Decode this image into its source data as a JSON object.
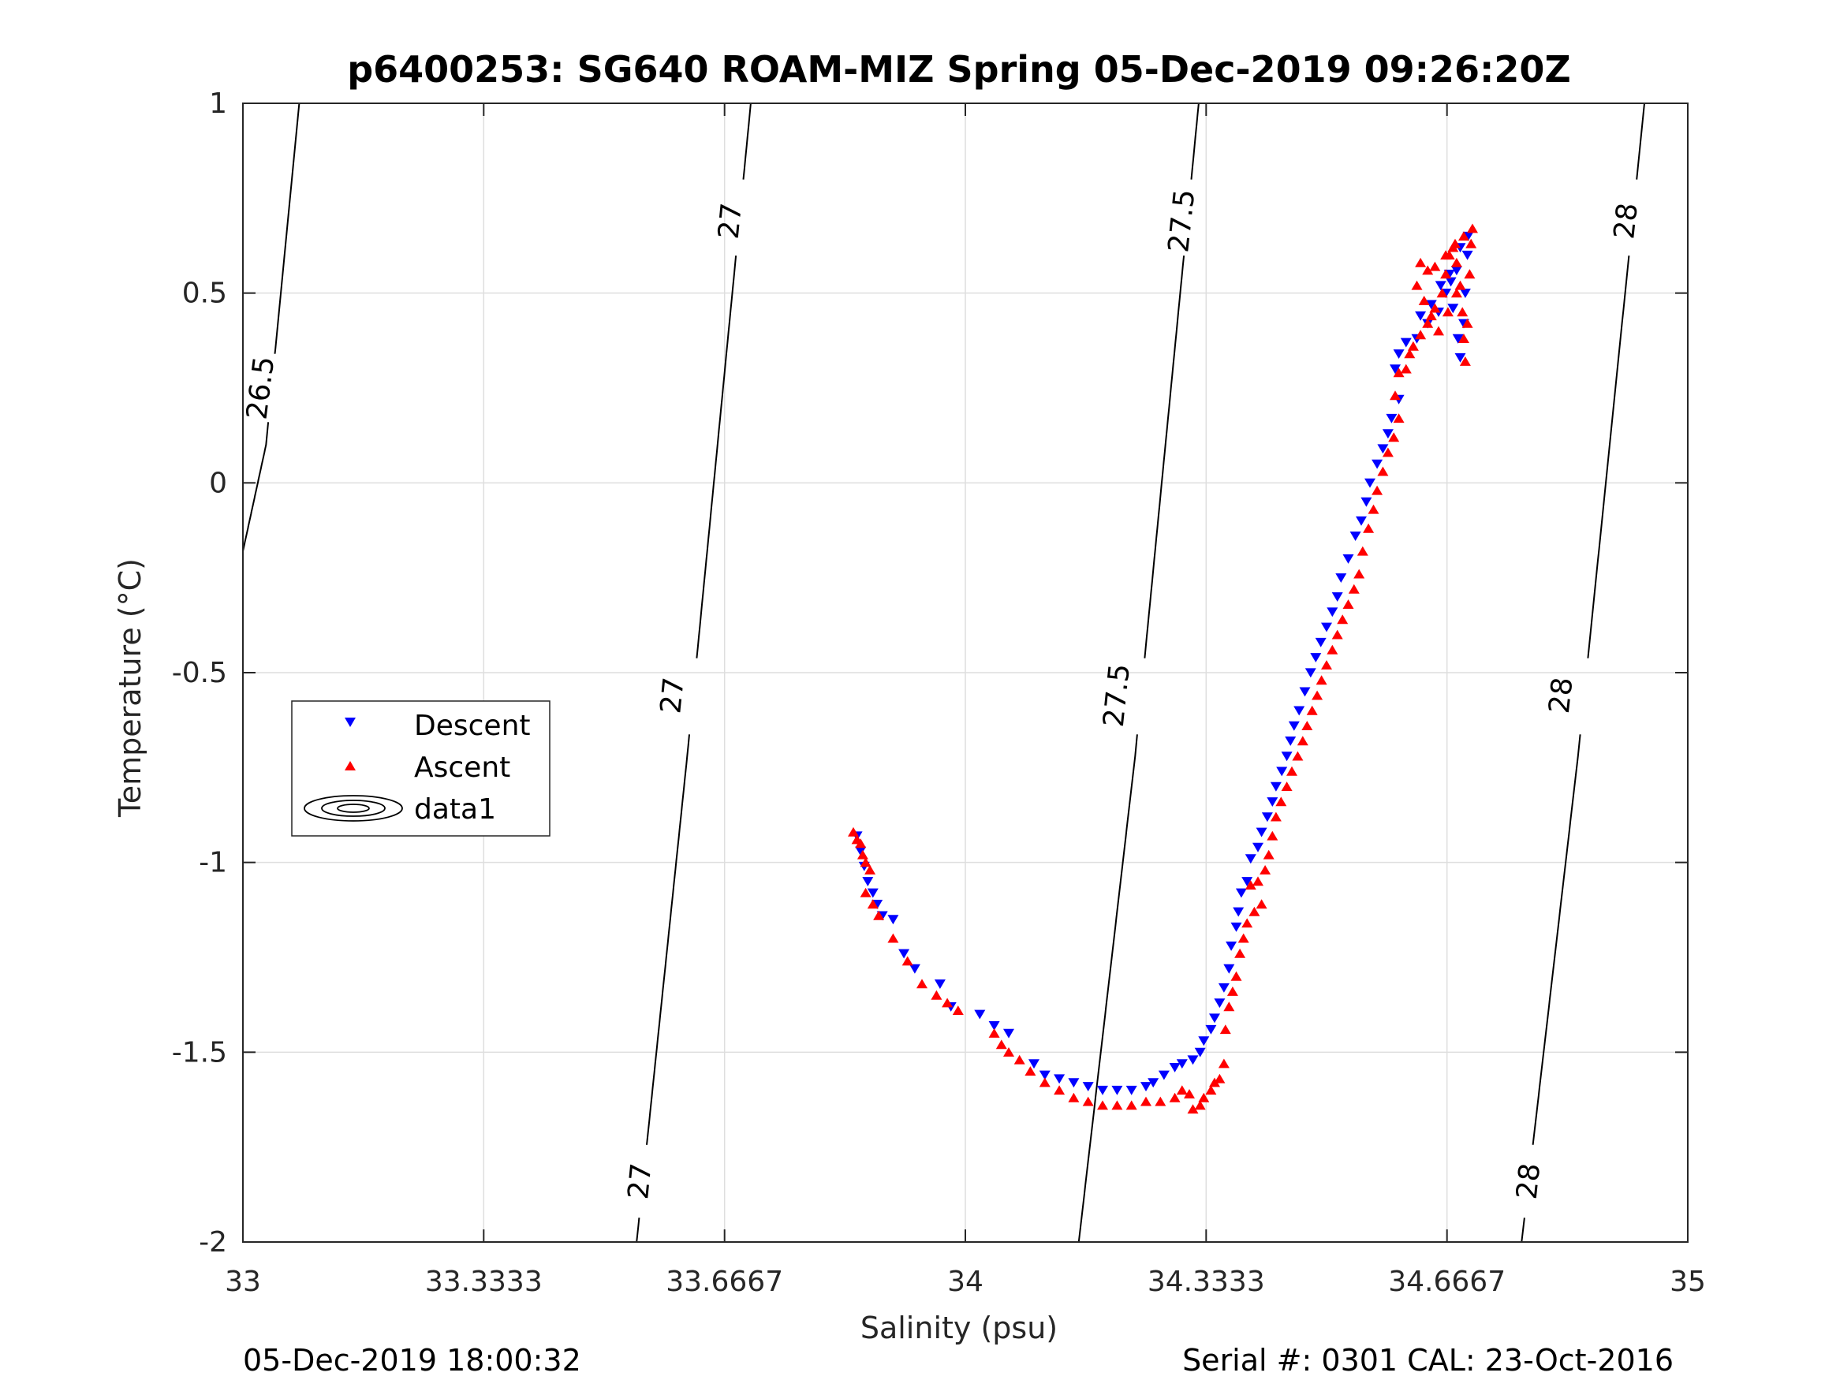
{
  "chart_data": {
    "type": "scatter",
    "title": "p6400253: SG640 ROAM-MIZ Spring 05-Dec-2019 09:26:20Z",
    "xlabel": "Salinity (psu)",
    "ylabel": "Temperature (°C)",
    "xlim": [
      33,
      35
    ],
    "ylim": [
      -2,
      1
    ],
    "x_ticks": [
      "33",
      "33.3333",
      "33.6667",
      "34",
      "34.3333",
      "34.6667",
      "35"
    ],
    "x_tick_values": [
      33,
      33.3333,
      33.6667,
      34,
      34.3333,
      34.6667,
      35
    ],
    "y_ticks": [
      "1",
      "0.5",
      "0",
      "-0.5",
      "-1",
      "-1.5",
      "-2"
    ],
    "y_tick_values": [
      1,
      0.5,
      0,
      -0.5,
      -1,
      -1.5,
      -2
    ],
    "grid": true,
    "legend_position": "left",
    "footer_left": "05-Dec-2019 18:00:32",
    "footer_right": "Serial #: 0301  CAL: 23-Oct-2016",
    "contours": [
      {
        "level": "26.5",
        "x": [
          33.0,
          33.032,
          33.078
        ],
        "y": [
          -0.18,
          0.1,
          1.0
        ],
        "labels": [
          {
            "text": "26.5",
            "x": 33.025,
            "y": 0.25
          }
        ]
      },
      {
        "level": "27",
        "x": [
          33.545,
          33.615,
          33.703
        ],
        "y": [
          -2.0,
          -0.72,
          1.0
        ],
        "labels": [
          {
            "text": "27",
            "x": 33.55,
            "y": -1.84
          },
          {
            "text": "27",
            "x": 33.595,
            "y": -0.56
          },
          {
            "text": "27",
            "x": 33.675,
            "y": 0.69
          }
        ]
      },
      {
        "level": "27.5",
        "x": [
          34.157,
          34.235,
          34.323
        ],
        "y": [
          -2.0,
          -0.72,
          1.0
        ],
        "labels": [
          {
            "text": "27.5",
            "x": 34.21,
            "y": -0.56
          },
          {
            "text": "27.5",
            "x": 34.3,
            "y": 0.69
          }
        ]
      },
      {
        "level": "28",
        "x": [
          34.77,
          34.848,
          34.94
        ],
        "y": [
          -2.0,
          -0.72,
          1.0
        ],
        "labels": [
          {
            "text": "28",
            "x": 34.78,
            "y": -1.84
          },
          {
            "text": "28",
            "x": 34.825,
            "y": -0.56
          },
          {
            "text": "28",
            "x": 34.915,
            "y": 0.69
          }
        ]
      }
    ],
    "series": [
      {
        "name": "Descent",
        "color": "#0000ff",
        "marker": "triangle-down",
        "points": [
          [
            33.85,
            -0.93
          ],
          [
            33.855,
            -0.97
          ],
          [
            33.86,
            -1.01
          ],
          [
            33.865,
            -1.05
          ],
          [
            33.872,
            -1.08
          ],
          [
            33.878,
            -1.11
          ],
          [
            33.885,
            -1.14
          ],
          [
            33.9,
            -1.15
          ],
          [
            33.915,
            -1.24
          ],
          [
            33.93,
            -1.28
          ],
          [
            33.965,
            -1.32
          ],
          [
            33.98,
            -1.38
          ],
          [
            34.02,
            -1.4
          ],
          [
            34.04,
            -1.43
          ],
          [
            34.06,
            -1.45
          ],
          [
            34.095,
            -1.53
          ],
          [
            34.11,
            -1.56
          ],
          [
            34.13,
            -1.57
          ],
          [
            34.15,
            -1.58
          ],
          [
            34.17,
            -1.59
          ],
          [
            34.19,
            -1.6
          ],
          [
            34.21,
            -1.6
          ],
          [
            34.23,
            -1.6
          ],
          [
            34.25,
            -1.59
          ],
          [
            34.26,
            -1.58
          ],
          [
            34.275,
            -1.56
          ],
          [
            34.29,
            -1.54
          ],
          [
            34.3,
            -1.53
          ],
          [
            34.315,
            -1.52
          ],
          [
            34.325,
            -1.5
          ],
          [
            34.33,
            -1.47
          ],
          [
            34.34,
            -1.44
          ],
          [
            34.345,
            -1.41
          ],
          [
            34.352,
            -1.37
          ],
          [
            34.358,
            -1.33
          ],
          [
            34.365,
            -1.28
          ],
          [
            34.368,
            -1.22
          ],
          [
            34.375,
            -1.17
          ],
          [
            34.378,
            -1.13
          ],
          [
            34.382,
            -1.08
          ],
          [
            34.39,
            -1.05
          ],
          [
            34.395,
            -0.99
          ],
          [
            34.405,
            -0.96
          ],
          [
            34.41,
            -0.92
          ],
          [
            34.418,
            -0.88
          ],
          [
            34.425,
            -0.84
          ],
          [
            34.43,
            -0.8
          ],
          [
            34.438,
            -0.76
          ],
          [
            34.445,
            -0.72
          ],
          [
            34.45,
            -0.68
          ],
          [
            34.455,
            -0.64
          ],
          [
            34.462,
            -0.6
          ],
          [
            34.47,
            -0.55
          ],
          [
            34.478,
            -0.5
          ],
          [
            34.485,
            -0.46
          ],
          [
            34.492,
            -0.42
          ],
          [
            34.5,
            -0.38
          ],
          [
            34.508,
            -0.34
          ],
          [
            34.515,
            -0.3
          ],
          [
            34.52,
            -0.25
          ],
          [
            34.53,
            -0.2
          ],
          [
            34.54,
            -0.14
          ],
          [
            34.548,
            -0.1
          ],
          [
            34.555,
            -0.05
          ],
          [
            34.56,
            0.0
          ],
          [
            34.57,
            0.05
          ],
          [
            34.578,
            0.09
          ],
          [
            34.585,
            0.13
          ],
          [
            34.59,
            0.17
          ],
          [
            34.6,
            0.22
          ],
          [
            34.595,
            0.3
          ],
          [
            34.6,
            0.34
          ],
          [
            34.61,
            0.37
          ],
          [
            34.625,
            0.38
          ],
          [
            34.64,
            0.42
          ],
          [
            34.655,
            0.45
          ],
          [
            34.665,
            0.5
          ],
          [
            34.672,
            0.53
          ],
          [
            34.68,
            0.56
          ],
          [
            34.675,
            0.46
          ],
          [
            34.682,
            0.38
          ],
          [
            34.685,
            0.33
          ],
          [
            34.69,
            0.42
          ],
          [
            34.692,
            0.5
          ],
          [
            34.695,
            0.6
          ],
          [
            34.696,
            0.65
          ],
          [
            34.685,
            0.62
          ],
          [
            34.67,
            0.55
          ],
          [
            34.658,
            0.52
          ],
          [
            34.645,
            0.47
          ],
          [
            34.63,
            0.44
          ]
        ]
      },
      {
        "name": "Ascent",
        "color": "#ff0000",
        "marker": "triangle-up",
        "points": [
          [
            33.845,
            -0.92
          ],
          [
            33.85,
            -0.94
          ],
          [
            33.855,
            -0.95
          ],
          [
            33.858,
            -0.98
          ],
          [
            33.862,
            -1.0
          ],
          [
            33.868,
            -1.02
          ],
          [
            33.862,
            -1.08
          ],
          [
            33.872,
            -1.11
          ],
          [
            33.88,
            -1.14
          ],
          [
            33.9,
            -1.2
          ],
          [
            33.92,
            -1.26
          ],
          [
            33.94,
            -1.32
          ],
          [
            33.96,
            -1.35
          ],
          [
            33.975,
            -1.37
          ],
          [
            33.99,
            -1.39
          ],
          [
            34.04,
            -1.45
          ],
          [
            34.05,
            -1.48
          ],
          [
            34.06,
            -1.5
          ],
          [
            34.075,
            -1.52
          ],
          [
            34.09,
            -1.55
          ],
          [
            34.11,
            -1.58
          ],
          [
            34.13,
            -1.6
          ],
          [
            34.15,
            -1.62
          ],
          [
            34.17,
            -1.63
          ],
          [
            34.19,
            -1.64
          ],
          [
            34.21,
            -1.64
          ],
          [
            34.23,
            -1.64
          ],
          [
            34.25,
            -1.63
          ],
          [
            34.27,
            -1.63
          ],
          [
            34.29,
            -1.62
          ],
          [
            34.3,
            -1.6
          ],
          [
            34.31,
            -1.61
          ],
          [
            34.315,
            -1.65
          ],
          [
            34.325,
            -1.64
          ],
          [
            34.33,
            -1.62
          ],
          [
            34.34,
            -1.6
          ],
          [
            34.345,
            -1.58
          ],
          [
            34.352,
            -1.57
          ],
          [
            34.358,
            -1.53
          ],
          [
            34.36,
            -1.44
          ],
          [
            34.365,
            -1.38
          ],
          [
            34.37,
            -1.34
          ],
          [
            34.375,
            -1.3
          ],
          [
            34.38,
            -1.24
          ],
          [
            34.385,
            -1.2
          ],
          [
            34.39,
            -1.16
          ],
          [
            34.4,
            -1.13
          ],
          [
            34.41,
            -1.11
          ],
          [
            34.395,
            -1.06
          ],
          [
            34.405,
            -1.05
          ],
          [
            34.415,
            -1.02
          ],
          [
            34.42,
            -0.98
          ],
          [
            34.425,
            -0.93
          ],
          [
            34.43,
            -0.88
          ],
          [
            34.437,
            -0.84
          ],
          [
            34.445,
            -0.8
          ],
          [
            34.452,
            -0.76
          ],
          [
            34.46,
            -0.72
          ],
          [
            34.467,
            -0.68
          ],
          [
            34.473,
            -0.64
          ],
          [
            34.48,
            -0.6
          ],
          [
            34.487,
            -0.56
          ],
          [
            34.493,
            -0.52
          ],
          [
            34.5,
            -0.48
          ],
          [
            34.508,
            -0.44
          ],
          [
            34.515,
            -0.4
          ],
          [
            34.522,
            -0.36
          ],
          [
            34.53,
            -0.32
          ],
          [
            34.538,
            -0.28
          ],
          [
            34.545,
            -0.24
          ],
          [
            34.55,
            -0.18
          ],
          [
            34.558,
            -0.12
          ],
          [
            34.565,
            -0.07
          ],
          [
            34.57,
            -0.02
          ],
          [
            34.578,
            0.03
          ],
          [
            34.585,
            0.08
          ],
          [
            34.593,
            0.12
          ],
          [
            34.6,
            0.17
          ],
          [
            34.595,
            0.23
          ],
          [
            34.6,
            0.29
          ],
          [
            34.61,
            0.3
          ],
          [
            34.615,
            0.34
          ],
          [
            34.62,
            0.36
          ],
          [
            34.63,
            0.39
          ],
          [
            34.64,
            0.42
          ],
          [
            34.65,
            0.46
          ],
          [
            34.66,
            0.5
          ],
          [
            34.665,
            0.55
          ],
          [
            34.67,
            0.6
          ],
          [
            34.675,
            0.62
          ],
          [
            34.68,
            0.58
          ],
          [
            34.685,
            0.52
          ],
          [
            34.688,
            0.45
          ],
          [
            34.69,
            0.38
          ],
          [
            34.692,
            0.32
          ],
          [
            34.695,
            0.42
          ],
          [
            34.698,
            0.55
          ],
          [
            34.7,
            0.63
          ],
          [
            34.702,
            0.67
          ],
          [
            34.69,
            0.65
          ],
          [
            34.678,
            0.63
          ],
          [
            34.665,
            0.6
          ],
          [
            34.65,
            0.57
          ],
          [
            34.64,
            0.56
          ],
          [
            34.63,
            0.58
          ],
          [
            34.625,
            0.52
          ],
          [
            34.635,
            0.48
          ],
          [
            34.645,
            0.44
          ],
          [
            34.655,
            0.4
          ],
          [
            34.668,
            0.45
          ],
          [
            34.68,
            0.5
          ]
        ]
      },
      {
        "name": "data1",
        "color": "#000000",
        "marker": "contour"
      }
    ]
  }
}
